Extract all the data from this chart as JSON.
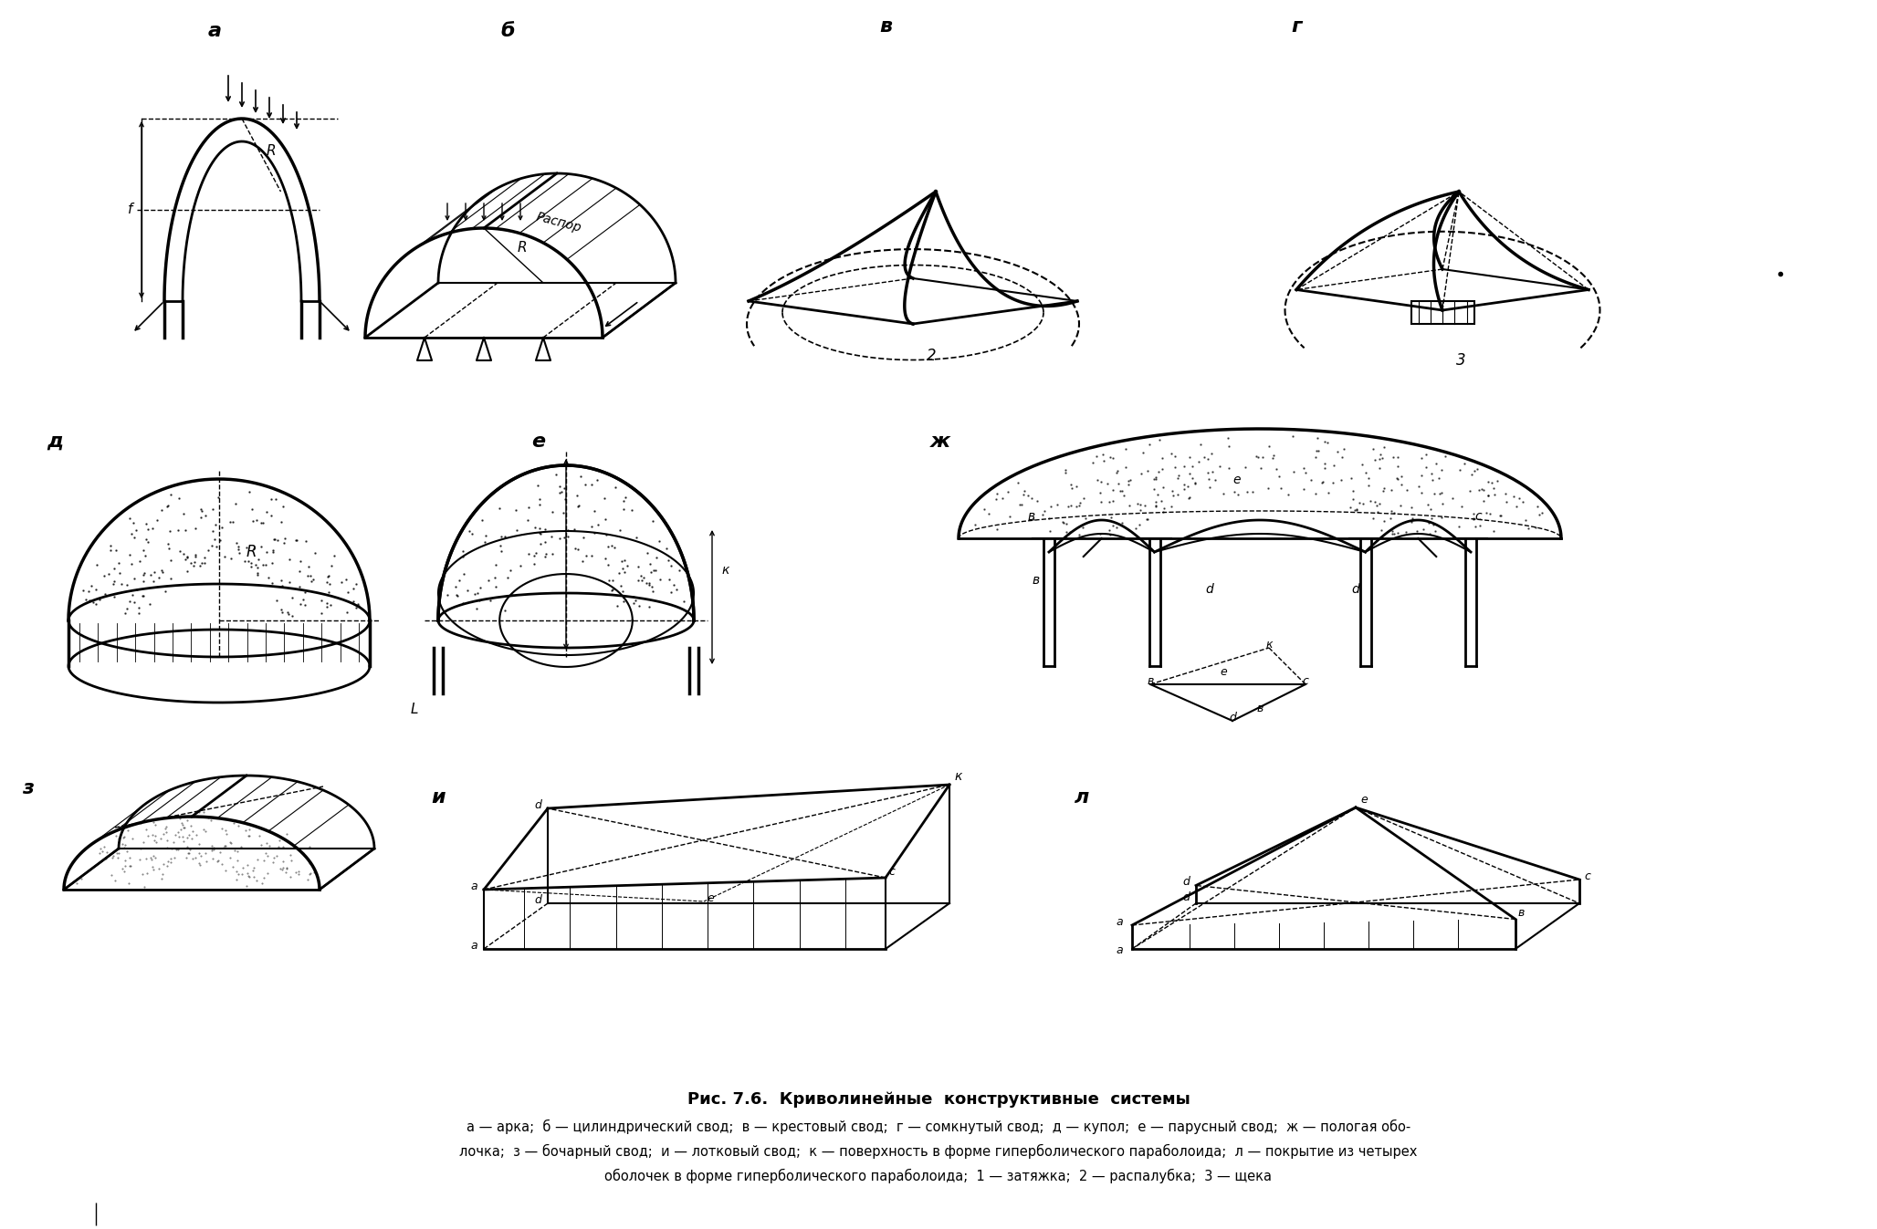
{
  "title": "Рис. 7.6.  Криволинейные  конструктивные  системы",
  "caption_line1": "а — арка;  б — цилиндрический свод;  в — крестовый свод;  г — сомкнутый свод;  д — купол;  е — парусный свод;  ж — пологая обо-",
  "caption_line2": "лочка;  з — бочарный свод;  и — лотковый свод;  к — поверхность в форме гиперболического параболоида;  л — покрытие из четырех",
  "caption_line3": "оболочек в форме гиперболического параболоида;  1 — затяжка;  2 — распалубка;  3 — щека",
  "bg_color": "#ffffff",
  "text_color": "#000000"
}
